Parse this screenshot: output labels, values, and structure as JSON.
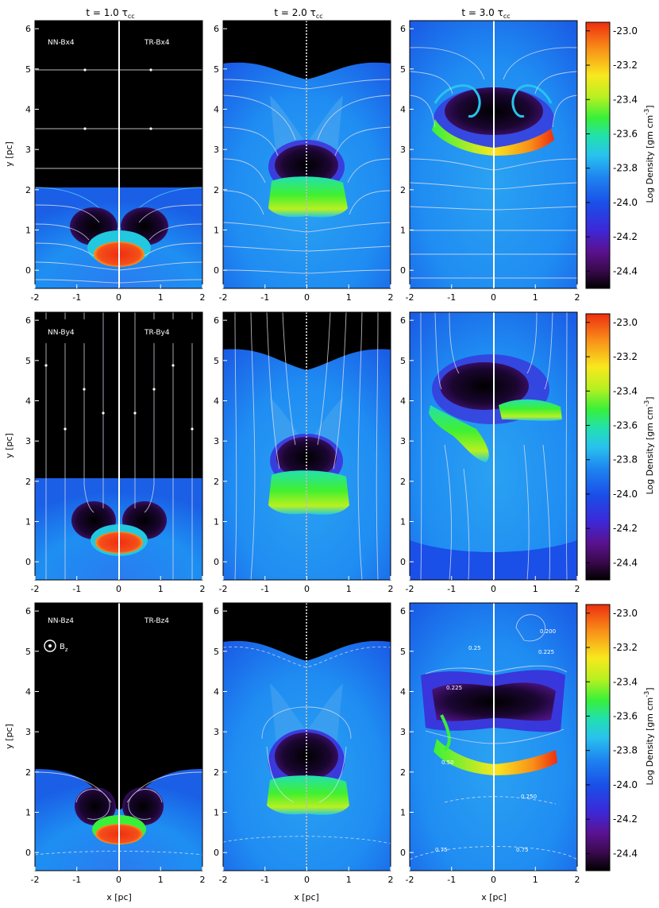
{
  "column_titles": [
    "t = 1.0 τ",
    "t = 2.0 τ",
    "t = 3.0 τ"
  ],
  "tau_subscript": "cc",
  "axes": {
    "xlabel": "x [pc]",
    "ylabel": "y [pc]",
    "xticks": [
      "-2",
      "-1",
      "0",
      "1",
      "2"
    ],
    "yticks": [
      "0",
      "1",
      "2",
      "3",
      "4",
      "5",
      "6"
    ]
  },
  "colorbar": {
    "label": "Log Density [gm cm",
    "label_exp": "-3",
    "label_end": "]",
    "ticks": [
      "-23.0",
      "-23.2",
      "-23.4",
      "-23.6",
      "-23.8",
      "-24.0",
      "-24.2",
      "-24.4"
    ],
    "range": [
      -24.5,
      -22.95
    ],
    "colormap": [
      "#000000",
      "#3b0a4f",
      "#5a1290",
      "#3d28d8",
      "#1a4fe8",
      "#1e86f0",
      "#29c2ee",
      "#22e0b0",
      "#38f03a",
      "#b8f020",
      "#f8e81e",
      "#f89018",
      "#ee2e10"
    ]
  },
  "rows": [
    {
      "left_label": "NN-Bx4",
      "right_label": "TR-Bx4",
      "field_lines": "horizontal"
    },
    {
      "left_label": "NN-By4",
      "right_label": "TR-By4",
      "field_lines": "vertical"
    },
    {
      "left_label": "NN-Bz4",
      "right_label": "TR-Bz4",
      "field_lines": "contours",
      "field_symbol": "B",
      "field_symbol_sub": "z",
      "contour_labels": [
        "0.200",
        "0.225",
        "0.25",
        "0.50",
        "0.75",
        "0.75",
        "0.250",
        "0.225"
      ]
    }
  ]
}
